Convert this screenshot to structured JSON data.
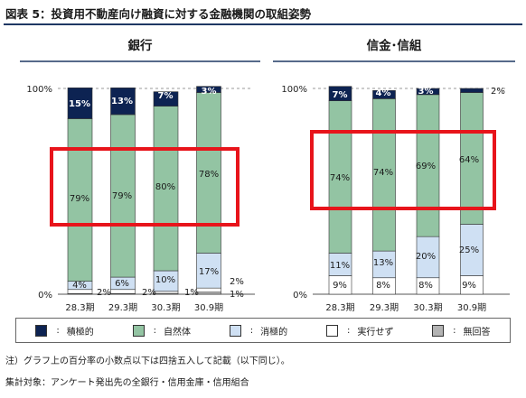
{
  "figure": {
    "title": "図表 5：投資用不動産向け融資に対する金融機関の取組姿勢",
    "note": "注）グラフ上の百分率の小数点以下は四捨五入して記載（以下同じ）。",
    "source": "集計対象：アンケート発出先の全銀行・信用金庫・信用組合",
    "highlight_color": "#e8141b"
  },
  "legend": [
    {
      "label": "積極的",
      "color": "#0d2352"
    },
    {
      "label": "自然体",
      "color": "#93c4a3"
    },
    {
      "label": "消極的",
      "color": "#cfe0f3"
    },
    {
      "label": "実行せず",
      "color": "#ffffff"
    },
    {
      "label": "無回答",
      "color": "#b3b3b3"
    }
  ],
  "chart_data": [
    {
      "type": "bar",
      "stacked": true,
      "title": "銀行",
      "categories": [
        "28.3期",
        "29.3期",
        "30.3期",
        "30.9期"
      ],
      "ylim": [
        0,
        100
      ],
      "yticks": [
        "0%",
        "100%"
      ],
      "series": [
        {
          "name": "無回答",
          "values": [
            0.3,
            0.3,
            0.4,
            1
          ],
          "labels": [
            "",
            "",
            "",
            "1%"
          ]
        },
        {
          "name": "実行せず",
          "values": [
            2,
            2,
            1,
            2
          ],
          "labels": [
            "2%",
            "2%",
            "1%",
            "2%"
          ]
        },
        {
          "name": "消極的",
          "values": [
            4,
            6,
            10,
            17
          ],
          "labels": [
            "4%",
            "6%",
            "10%",
            "17%"
          ]
        },
        {
          "name": "自然体",
          "values": [
            79,
            79,
            80,
            78
          ],
          "labels": [
            "79%",
            "79%",
            "80%",
            "78%"
          ]
        },
        {
          "name": "積極的",
          "values": [
            15,
            13,
            7,
            3
          ],
          "labels": [
            "15%",
            "13%",
            "7%",
            "3%"
          ]
        }
      ]
    },
    {
      "type": "bar",
      "stacked": true,
      "title": "信金･信組",
      "categories": [
        "28.3期",
        "29.3期",
        "30.3期",
        "30.9期"
      ],
      "ylim": [
        0,
        100
      ],
      "yticks": [
        "0%",
        "100%"
      ],
      "series": [
        {
          "name": "無回答",
          "values": [
            0,
            0,
            0,
            0
          ],
          "labels": [
            "",
            "",
            "",
            ""
          ]
        },
        {
          "name": "実行せず",
          "values": [
            9,
            8,
            8,
            9
          ],
          "labels": [
            "9%",
            "8%",
            "8%",
            "9%"
          ]
        },
        {
          "name": "消極的",
          "values": [
            11,
            13,
            20,
            25
          ],
          "labels": [
            "11%",
            "13%",
            "20%",
            "25%"
          ]
        },
        {
          "name": "自然体",
          "values": [
            74,
            74,
            69,
            64
          ],
          "labels": [
            "74%",
            "74%",
            "69%",
            "64%"
          ]
        },
        {
          "name": "積極的",
          "values": [
            7,
            4,
            3,
            2
          ],
          "labels": [
            "7%",
            "4%",
            "3%",
            "2%"
          ]
        }
      ]
    }
  ]
}
